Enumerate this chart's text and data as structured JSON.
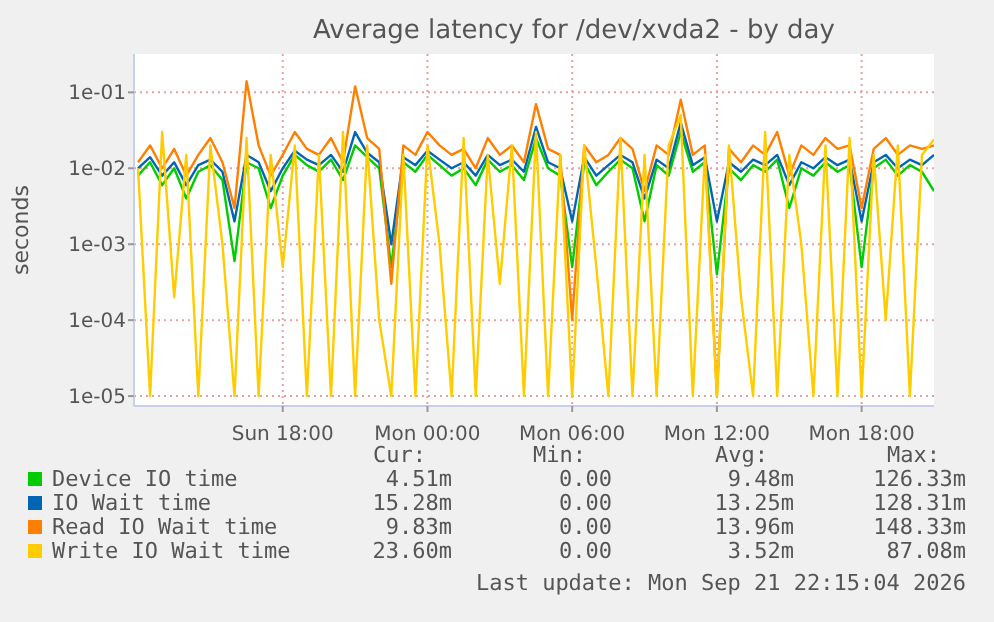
{
  "chart_data": {
    "type": "line",
    "title": "Average latency for /dev/xvda2 - by day",
    "ylabel": "seconds",
    "log": "y",
    "grid": true,
    "legend": "bottom",
    "xlim": [
      "2026-09-20T11:50",
      "2026-09-21T21:00"
    ],
    "xticks": [
      {
        "value": "2026-09-20T18:00",
        "label": "Sun 18:00"
      },
      {
        "value": "2026-09-21T00:00",
        "label": "Mon 00:00"
      },
      {
        "value": "2026-09-21T06:00",
        "label": "Mon 06:00"
      },
      {
        "value": "2026-09-21T12:00",
        "label": "Mon 12:00"
      },
      {
        "value": "2026-09-21T18:00",
        "label": "Mon 18:00"
      }
    ],
    "ylim": [
      7.4e-06,
      0.32
    ],
    "yticks": [
      {
        "value": 1e-05,
        "label": "1e-05"
      },
      {
        "value": 0.0001,
        "label": "1e-04"
      },
      {
        "value": 0.001,
        "label": "1e-03"
      },
      {
        "value": 0.01,
        "label": "1e-02"
      },
      {
        "value": 0.1,
        "label": "1e-01"
      }
    ],
    "x": [
      "2026-09-20T12:00",
      "2026-09-20T12:30",
      "2026-09-20T13:00",
      "2026-09-20T13:30",
      "2026-09-20T14:00",
      "2026-09-20T14:30",
      "2026-09-20T15:00",
      "2026-09-20T15:30",
      "2026-09-20T16:00",
      "2026-09-20T16:30",
      "2026-09-20T17:00",
      "2026-09-20T17:30",
      "2026-09-20T18:00",
      "2026-09-20T18:30",
      "2026-09-20T19:00",
      "2026-09-20T19:30",
      "2026-09-20T20:00",
      "2026-09-20T20:30",
      "2026-09-20T21:00",
      "2026-09-20T21:30",
      "2026-09-20T22:00",
      "2026-09-20T22:30",
      "2026-09-20T23:00",
      "2026-09-20T23:30",
      "2026-09-21T00:00",
      "2026-09-21T00:30",
      "2026-09-21T01:00",
      "2026-09-21T01:30",
      "2026-09-21T02:00",
      "2026-09-21T02:30",
      "2026-09-21T03:00",
      "2026-09-21T03:30",
      "2026-09-21T04:00",
      "2026-09-21T04:30",
      "2026-09-21T05:00",
      "2026-09-21T05:30",
      "2026-09-21T06:00",
      "2026-09-21T06:30",
      "2026-09-21T07:00",
      "2026-09-21T07:30",
      "2026-09-21T08:00",
      "2026-09-21T08:30",
      "2026-09-21T09:00",
      "2026-09-21T09:30",
      "2026-09-21T10:00",
      "2026-09-21T10:30",
      "2026-09-21T11:00",
      "2026-09-21T11:30",
      "2026-09-21T12:00",
      "2026-09-21T12:30",
      "2026-09-21T13:00",
      "2026-09-21T13:30",
      "2026-09-21T14:00",
      "2026-09-21T14:30",
      "2026-09-21T15:00",
      "2026-09-21T15:30",
      "2026-09-21T16:00",
      "2026-09-21T16:30",
      "2026-09-21T17:00",
      "2026-09-21T17:30",
      "2026-09-21T18:00",
      "2026-09-21T18:30",
      "2026-09-21T19:00",
      "2026-09-21T19:30",
      "2026-09-21T20:00",
      "2026-09-21T20:30",
      "2026-09-21T21:00"
    ],
    "series": [
      {
        "name": "Device IO time",
        "color": "#00cc00",
        "values": [
          0.008,
          0.012,
          0.006,
          0.01,
          0.004,
          0.009,
          0.011,
          0.007,
          0.0006,
          0.012,
          0.01,
          0.003,
          0.008,
          0.015,
          0.011,
          0.009,
          0.013,
          0.007,
          0.02,
          0.014,
          0.01,
          0.0005,
          0.012,
          0.009,
          0.015,
          0.011,
          0.008,
          0.01,
          0.006,
          0.013,
          0.009,
          0.011,
          0.007,
          0.025,
          0.01,
          0.008,
          0.0005,
          0.012,
          0.006,
          0.009,
          0.013,
          0.01,
          0.002,
          0.011,
          0.008,
          0.03,
          0.009,
          0.012,
          0.0004,
          0.01,
          0.007,
          0.011,
          0.009,
          0.013,
          0.003,
          0.01,
          0.008,
          0.012,
          0.009,
          0.011,
          0.0005,
          0.01,
          0.013,
          0.008,
          0.011,
          0.009,
          0.005
        ]
      },
      {
        "name": "IO Wait time",
        "color": "#0066b3",
        "values": [
          0.01,
          0.014,
          0.008,
          0.012,
          0.006,
          0.011,
          0.013,
          0.009,
          0.002,
          0.015,
          0.012,
          0.005,
          0.01,
          0.017,
          0.013,
          0.011,
          0.015,
          0.009,
          0.03,
          0.016,
          0.012,
          0.001,
          0.014,
          0.011,
          0.017,
          0.013,
          0.01,
          0.012,
          0.008,
          0.015,
          0.011,
          0.013,
          0.009,
          0.035,
          0.012,
          0.01,
          0.002,
          0.014,
          0.008,
          0.011,
          0.015,
          0.012,
          0.004,
          0.013,
          0.01,
          0.04,
          0.011,
          0.014,
          0.002,
          0.012,
          0.009,
          0.013,
          0.011,
          0.015,
          0.006,
          0.012,
          0.01,
          0.014,
          0.011,
          0.013,
          0.002,
          0.012,
          0.015,
          0.01,
          0.013,
          0.011,
          0.015
        ]
      },
      {
        "name": "Read IO Wait time",
        "color": "#ff8000",
        "values": [
          0.012,
          0.02,
          0.01,
          0.018,
          0.008,
          0.015,
          0.025,
          0.012,
          0.003,
          0.14,
          0.02,
          0.008,
          0.015,
          0.03,
          0.018,
          0.015,
          0.025,
          0.012,
          0.12,
          0.025,
          0.018,
          0.0003,
          0.02,
          0.015,
          0.03,
          0.02,
          0.015,
          0.018,
          0.01,
          0.025,
          0.015,
          0.02,
          0.012,
          0.07,
          0.018,
          0.015,
          0.0001,
          0.02,
          0.012,
          0.015,
          0.025,
          0.018,
          0.005,
          0.02,
          0.015,
          0.08,
          0.015,
          0.02,
          1e-05,
          0.018,
          0.012,
          0.02,
          0.015,
          0.03,
          0.008,
          0.02,
          0.015,
          0.025,
          0.018,
          0.02,
          0.003,
          0.018,
          0.025,
          0.015,
          0.02,
          0.018,
          0.02
        ]
      },
      {
        "name": "Write IO Wait time",
        "color": "#ffcc00",
        "values": [
          0.01,
          1e-05,
          0.03,
          0.0002,
          0.015,
          1e-05,
          0.02,
          0.001,
          1e-05,
          0.025,
          1e-05,
          0.015,
          0.0005,
          0.02,
          1e-05,
          0.015,
          1e-05,
          0.03,
          1e-05,
          0.02,
          0.0001,
          1e-05,
          0.015,
          1e-05,
          0.02,
          0.001,
          1e-05,
          0.025,
          1e-05,
          0.015,
          0.0003,
          0.02,
          1e-05,
          0.03,
          1e-05,
          0.015,
          1e-05,
          0.02,
          0.0005,
          1e-05,
          0.025,
          1e-05,
          0.015,
          1e-05,
          0.02,
          0.05,
          1e-05,
          0.015,
          1e-05,
          0.02,
          0.0002,
          1e-05,
          0.03,
          1e-05,
          0.015,
          0.001,
          1e-05,
          0.02,
          1e-05,
          0.025,
          1e-05,
          0.015,
          0.0001,
          0.02,
          1e-05,
          0.015,
          0.024
        ]
      }
    ],
    "annotations": [
      "Cur:",
      "Min:",
      "Avg:",
      "Max:",
      "4.51m",
      "0.00",
      "9.48m",
      "126.33m",
      "15.28m",
      "0.00",
      "13.25m",
      "128.31m",
      "9.83m",
      "0.00",
      "13.96m",
      "148.33m",
      "23.60m",
      "0.00",
      "3.52m",
      "87.08m",
      "Last update: Mon Sep 21 22:15:04 2026"
    ]
  }
}
